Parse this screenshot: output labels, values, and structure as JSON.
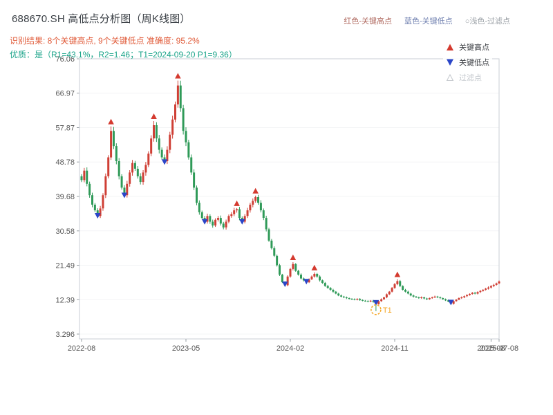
{
  "header": {
    "title": "688670.SH 高低点分析图（周K线图）",
    "top_legend": [
      {
        "label": "红色-关键高点",
        "color": "#b06a60"
      },
      {
        "label": "蓝色-关键低点",
        "color": "#7080b0"
      },
      {
        "label": "○浅色-过滤点",
        "color": "#9aa0a6"
      }
    ],
    "result_line": "识别结果: 8个关键高点, 9个关键低点  准确度: 95.2%",
    "result_color": "#e05a38",
    "quality_line": "优质：是（R1=43.1%，R2=1.46；T1=2024-09-20 P1=9.36）",
    "quality_color": "#18a388"
  },
  "plot_legend": {
    "items": [
      {
        "label": "关键高点",
        "marker": "up-triangle",
        "color": "#d43a2f",
        "text_color": "#3c3f44"
      },
      {
        "label": "关键低点",
        "marker": "down-triangle",
        "color": "#2b46c8",
        "text_color": "#3c3f44"
      },
      {
        "label": "过滤点",
        "marker": "open-up-triangle",
        "color": "#c3c7cc",
        "text_color": "#c3c7cc"
      }
    ]
  },
  "chart_data": {
    "type": "candlestick",
    "period": "weekly",
    "title": "688670.SH 高低点分析图（周K线图）",
    "ylim": [
      3.296,
      76.06
    ],
    "y_ticks": [
      76.06,
      66.97,
      57.87,
      48.78,
      39.68,
      30.58,
      21.49,
      12.39,
      3.296
    ],
    "x_ticks": [
      {
        "label": "2022-08",
        "week": 0
      },
      {
        "label": "2023-05",
        "week": 39
      },
      {
        "label": "2024-02",
        "week": 78
      },
      {
        "label": "2024-11",
        "week": 117
      },
      {
        "label": "2025-08",
        "week": 153
      },
      {
        "label": "2025-07-08",
        "week": 156
      }
    ],
    "up_color": "#cf3f35",
    "down_color": "#2f9a58",
    "first_open": 45.0,
    "closes": [
      44,
      46.5,
      43,
      40,
      37.5,
      36,
      34.5,
      36.5,
      40,
      45,
      50,
      57,
      53,
      49,
      45,
      42,
      40,
      43,
      46,
      48.5,
      47,
      45,
      43.5,
      46,
      48,
      51,
      55,
      58.5,
      55,
      52,
      50,
      49,
      52,
      56,
      60,
      64,
      69,
      63,
      57,
      54,
      50,
      46,
      42,
      38,
      35.5,
      34,
      33,
      34.5,
      33,
      32,
      33.5,
      34,
      32.5,
      31.5,
      33,
      34.5,
      35,
      36,
      36.3,
      34,
      33,
      34.5,
      36,
      37.5,
      38.5,
      39.5,
      38,
      36,
      34,
      31,
      28,
      26,
      24,
      21.5,
      19,
      17,
      16.2,
      18.5,
      20.5,
      21.8,
      20,
      19,
      18,
      17.5,
      17,
      17.8,
      18.5,
      19.2,
      18.5,
      17.5,
      16.8,
      16,
      15.5,
      15,
      14.5,
      14,
      13.5,
      13.2,
      13,
      12.8,
      12.6,
      12.5,
      12.4,
      12.6,
      12.3,
      12.1,
      12,
      11.9,
      12.1,
      11.8,
      11.2,
      12,
      12.5,
      13,
      13.8,
      14.5,
      15.5,
      16.5,
      17.3,
      16,
      15,
      14.5,
      14,
      13.5,
      13.2,
      13,
      12.8,
      13,
      12.7,
      12.5,
      12.8,
      13,
      13.2,
      13,
      12.8,
      12.5,
      12.2,
      11.9,
      11.3,
      12,
      12.4,
      12.8,
      13,
      13.3,
      13.6,
      13.9,
      14.2,
      14,
      14.4,
      14.7,
      15,
      15.3,
      15.6,
      16,
      16.3,
      16.7,
      17.2
    ],
    "key_highs": [
      {
        "week": 11,
        "price": 58.2
      },
      {
        "week": 27,
        "price": 59.6
      },
      {
        "week": 36,
        "price": 70.3
      },
      {
        "week": 58,
        "price": 36.6
      },
      {
        "week": 65,
        "price": 39.9
      },
      {
        "week": 79,
        "price": 22.3
      },
      {
        "week": 87,
        "price": 19.6
      },
      {
        "week": 118,
        "price": 17.8
      }
    ],
    "key_lows": [
      {
        "week": 6,
        "price": 34.0
      },
      {
        "week": 16,
        "price": 39.4
      },
      {
        "week": 31,
        "price": 48.2
      },
      {
        "week": 46,
        "price": 32.4
      },
      {
        "week": 60,
        "price": 32.4
      },
      {
        "week": 76,
        "price": 15.9
      },
      {
        "week": 84,
        "price": 16.6
      },
      {
        "week": 110,
        "price": 11.0
      },
      {
        "week": 138,
        "price": 11.1
      }
    ],
    "t1_point": {
      "week": 110,
      "price": 9.36,
      "label": "T1",
      "date": "2024-09-20",
      "color": "#f5a623"
    },
    "marker_colors": {
      "key_high": "#d43a2f",
      "key_low": "#2b46c8"
    }
  }
}
